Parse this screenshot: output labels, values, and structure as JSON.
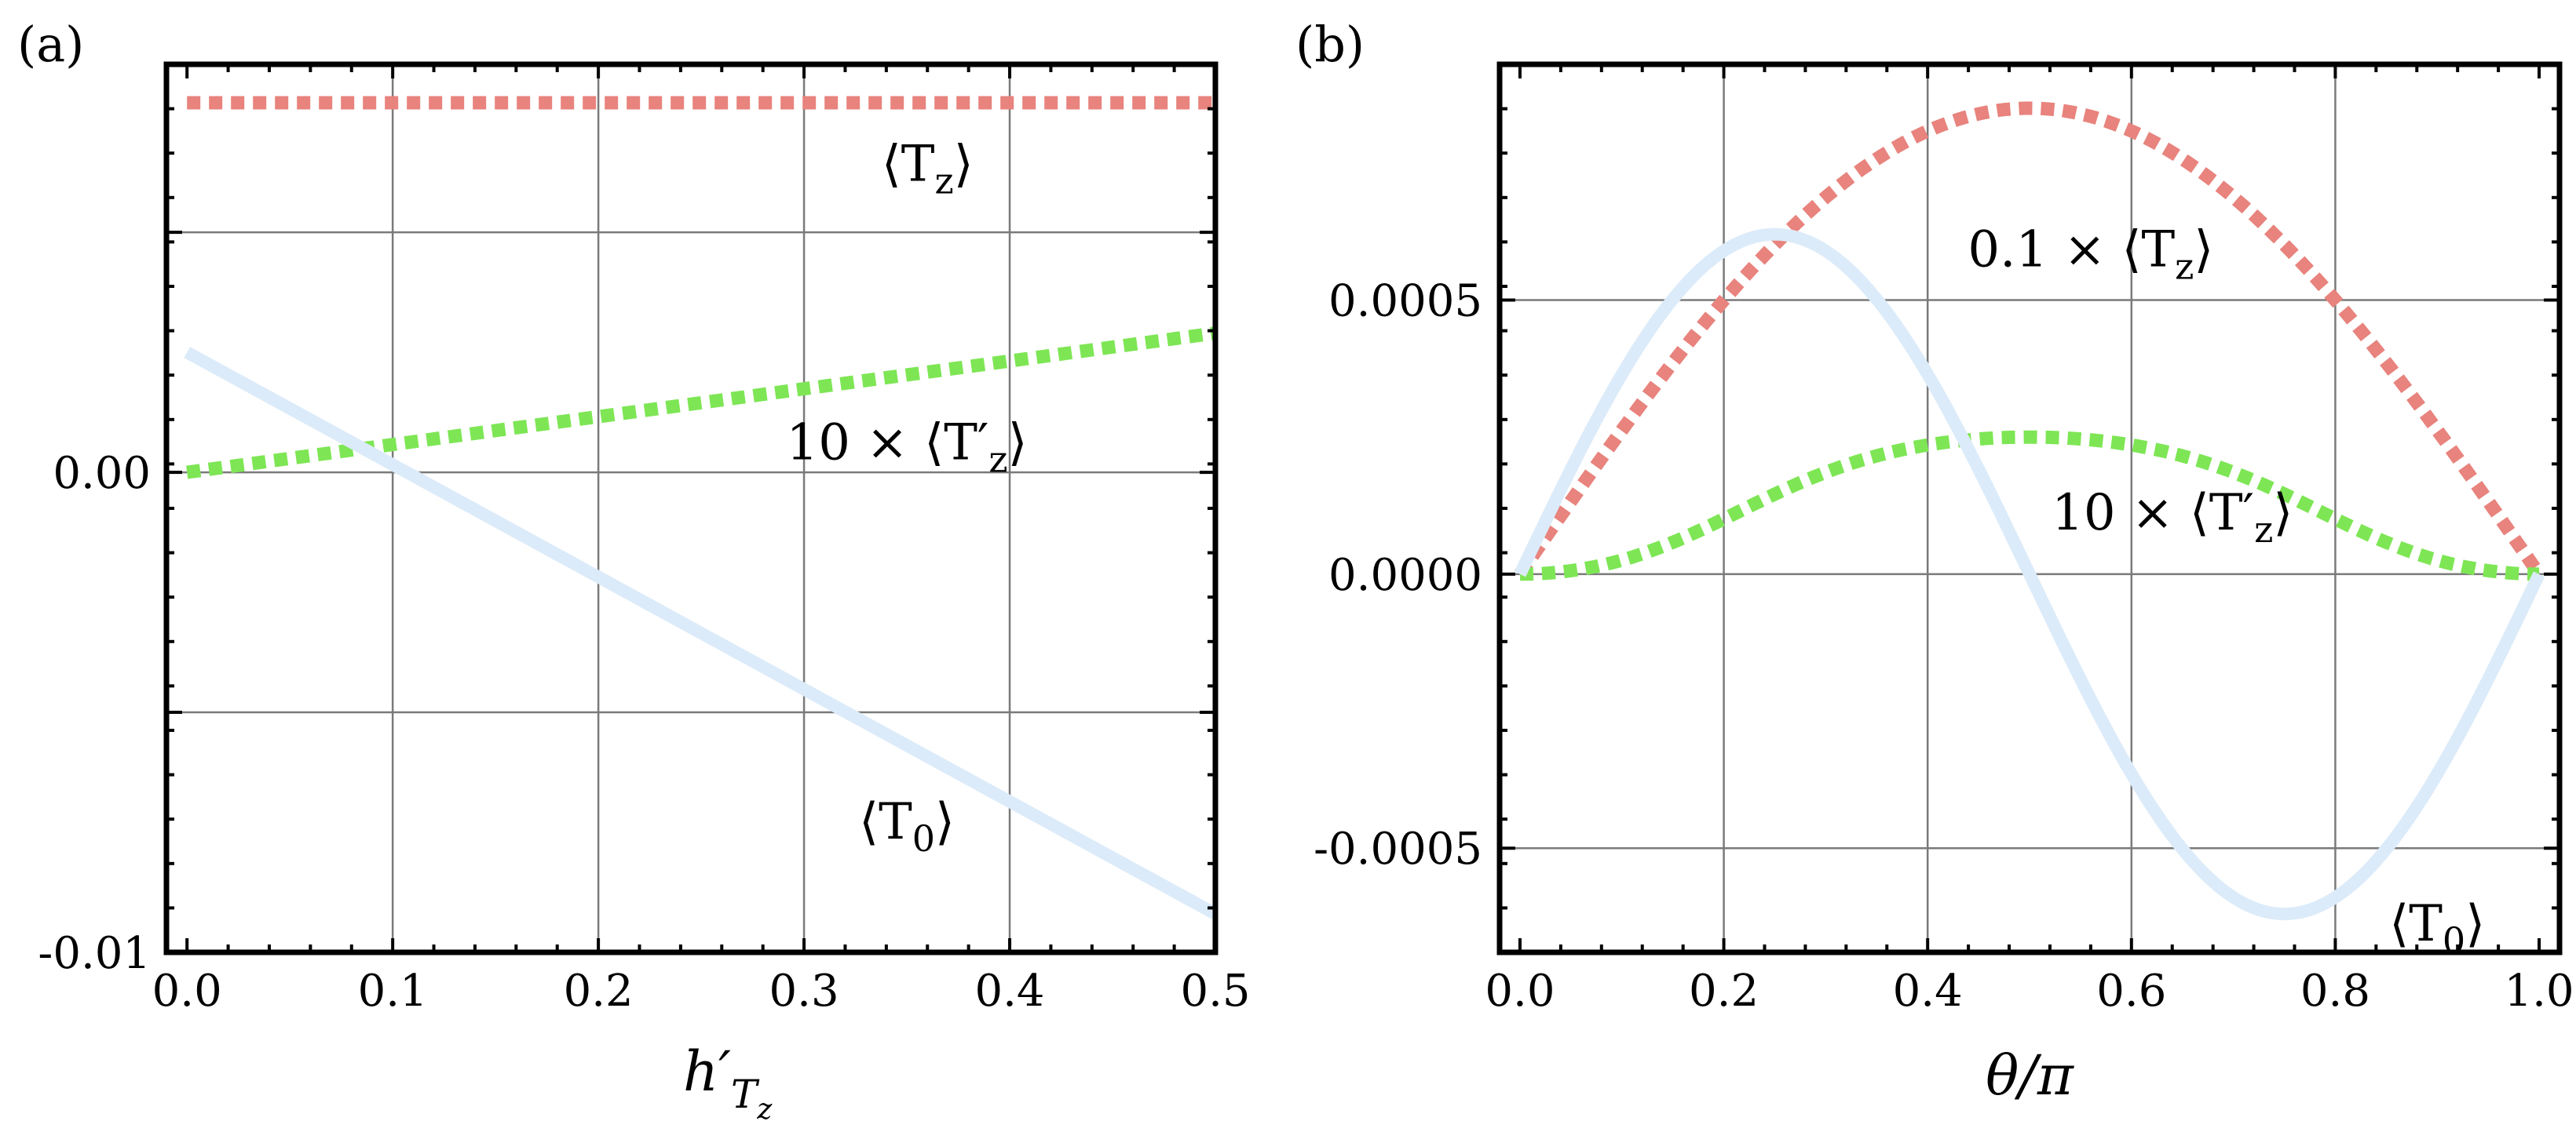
{
  "chart_data": [
    {
      "panel": "(a)",
      "type": "line",
      "xlabel": "h′_{T_z}",
      "xlabel_parts": [
        "h′",
        "T",
        "z"
      ],
      "ylabel": "",
      "xlim": [
        -0.01,
        0.5
      ],
      "ylim": [
        -0.01,
        0.0085
      ],
      "xticks": [
        0.0,
        0.1,
        0.2,
        0.3,
        0.4,
        0.5
      ],
      "xtick_labels": [
        "0.0",
        "0.1",
        "0.2",
        "0.3",
        "0.4",
        "0.5"
      ],
      "yticks": [
        -0.01,
        0.0
      ],
      "ytick_labels": [
        "-0.01",
        "0.00"
      ],
      "ygrid": [
        -0.005,
        0.0,
        0.005
      ],
      "series": [
        {
          "name": "⟨Tz⟩",
          "color": "#e8837d",
          "style": "dotted",
          "x": [
            0.0,
            0.5
          ],
          "y": [
            0.0077,
            0.0077
          ]
        },
        {
          "name": "10 × ⟨T′z⟩",
          "color": "#7ee655",
          "style": "dotted",
          "x": [
            0.0,
            0.5
          ],
          "y": [
            0.0,
            0.0029
          ]
        },
        {
          "name": "⟨T0⟩",
          "color": "#dcebf9",
          "style": "solid",
          "x": [
            0.0,
            0.5
          ],
          "y": [
            0.0025,
            -0.0092
          ]
        }
      ],
      "annotations": [
        {
          "text": "⟨Tz⟩",
          "main": "⟨T",
          "sub": "z",
          "close": "⟩",
          "x": 0.36,
          "y": 0.0064
        },
        {
          "text": "10 × ⟨T′z⟩",
          "main": "10 × ⟨T′",
          "sub": "z",
          "close": "⟩",
          "x": 0.35,
          "y": 0.0006
        },
        {
          "text": "⟨T0⟩",
          "main": "⟨T",
          "sub": "0",
          "close": "⟩",
          "x": 0.35,
          "y": -0.0073
        }
      ]
    },
    {
      "panel": "(b)",
      "type": "line",
      "xlabel": "θ/π",
      "ylabel": "",
      "xlim": [
        -0.02,
        1.02
      ],
      "ylim": [
        -0.00069,
        0.00093
      ],
      "xticks": [
        0.0,
        0.2,
        0.4,
        0.6,
        0.8,
        1.0
      ],
      "xtick_labels": [
        "0.0",
        "0.2",
        "0.4",
        "0.6",
        "0.8",
        "1.0"
      ],
      "yticks": [
        -0.0005,
        0.0,
        0.0005
      ],
      "ytick_labels": [
        "-0.0005",
        "0.0000",
        "0.0005"
      ],
      "series": [
        {
          "name": "0.1 × ⟨Tz⟩",
          "color": "#e8837d",
          "style": "dotted",
          "function": "0.00085*sin(pi*x)"
        },
        {
          "name": "10 × ⟨T′z⟩",
          "color": "#7ee655",
          "style": "dotted",
          "function": "0.00025*sin(pi*x)^2*(1+0.8*sin(pi*x)^2)/(1+0.8*sin(pi*x)^2*sin(pi*x)^2)"
        },
        {
          "name": "⟨T0⟩",
          "color": "#dcebf9",
          "style": "solid",
          "function": "0.00062*sin(2*pi*x)"
        }
      ],
      "annotations": [
        {
          "text": "0.1 × ⟨Tz⟩",
          "main": "0.1 × ⟨T",
          "sub": "z",
          "close": "⟩",
          "x": 0.56,
          "y": 0.00059
        },
        {
          "text": "10 × ⟨T′z⟩",
          "main": "10 × ⟨T′",
          "sub": "z",
          "close": "⟩",
          "x": 0.64,
          "y": 0.00011
        },
        {
          "text": "⟨T0⟩",
          "main": "⟨T",
          "sub": "0",
          "close": "⟩",
          "x": 0.9,
          "y": -0.00064
        }
      ]
    }
  ]
}
